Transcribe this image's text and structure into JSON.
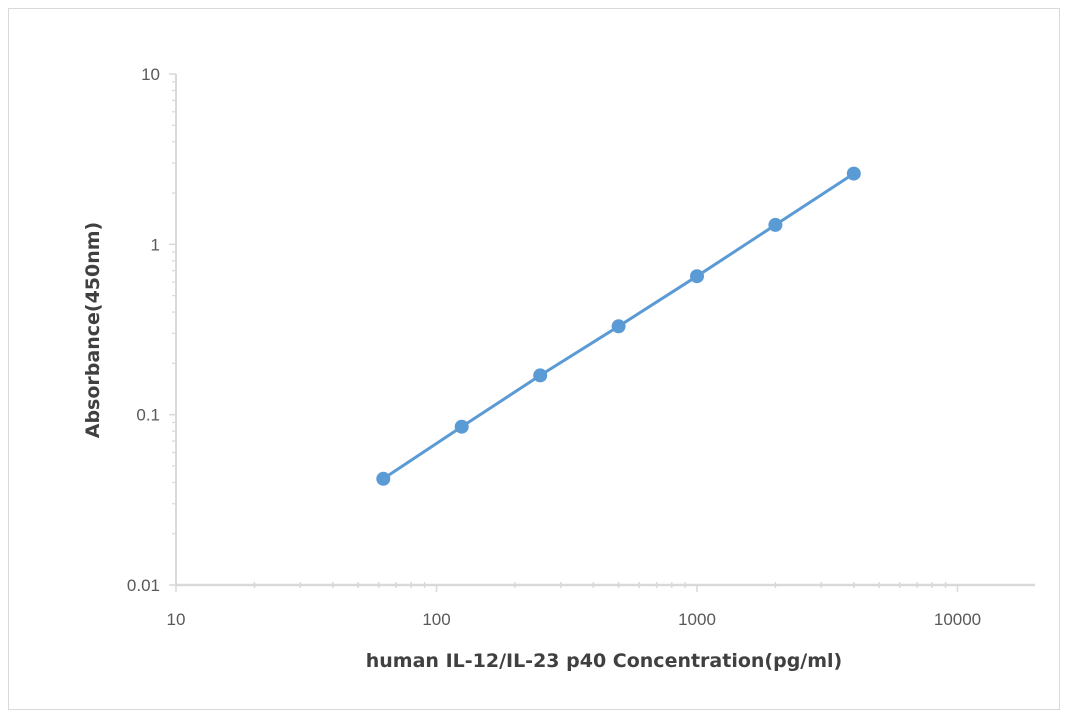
{
  "chart_data": {
    "type": "line",
    "title": "",
    "xlabel": "human IL-12/IL-23 p40  Concentration(pg/ml)",
    "ylabel": "Absorbance(450nm)",
    "x_scale": "log",
    "y_scale": "log",
    "xlim": [
      10,
      20000
    ],
    "ylim": [
      0.01,
      10
    ],
    "x_tick_labels": [
      "10",
      "100",
      "1000",
      "10000"
    ],
    "y_tick_labels": [
      "0.01",
      "0.1",
      "1",
      "10"
    ],
    "grid": false,
    "legend": "none",
    "series": [
      {
        "x": [
          62.5,
          125,
          250,
          500,
          1000,
          2000,
          4000
        ],
        "y": [
          0.042,
          0.085,
          0.17,
          0.33,
          0.65,
          1.3,
          2.6
        ],
        "color": "#5b9bd5",
        "marker": "circle"
      }
    ],
    "axis_color": "#d9d9d9"
  }
}
